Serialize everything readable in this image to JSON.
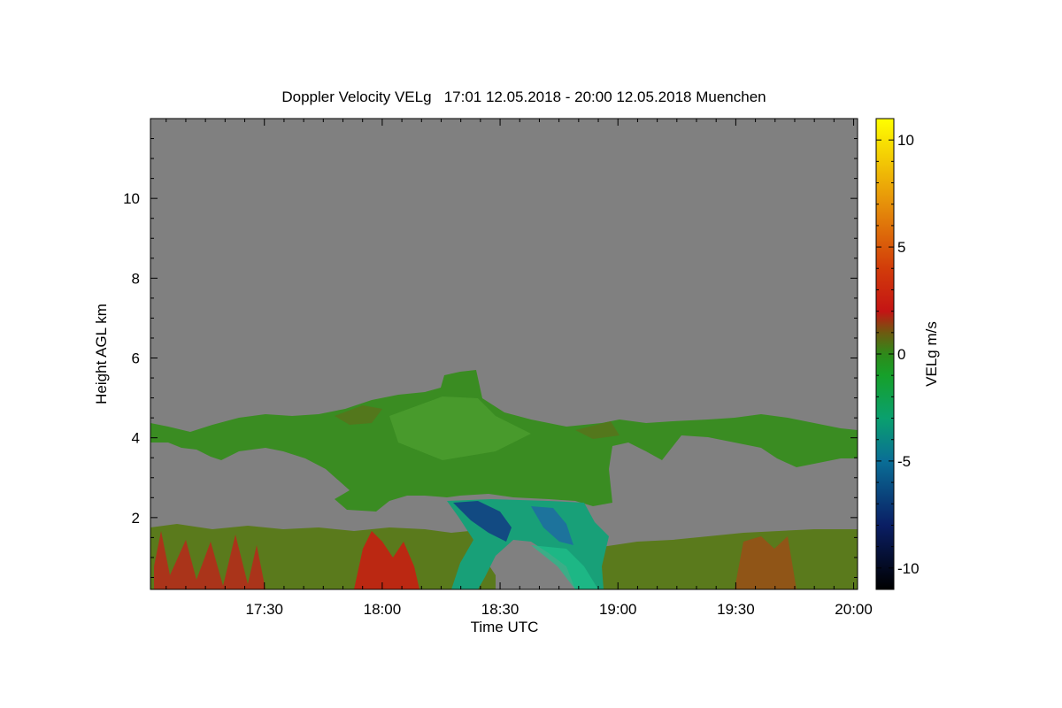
{
  "chart_data": {
    "type": "heatmap",
    "title": "Doppler Velocity VELg   17:01 12.05.2018 - 20:00 12.05.2018 Muenchen",
    "xlabel": "Time UTC",
    "ylabel": "Height AGL km",
    "colorbar_label": "VELg m/s",
    "x_tick_labels": [
      "17:30",
      "18:00",
      "18:30",
      "19:00",
      "19:30",
      "20:00"
    ],
    "x_ticks_minutes_utc": [
      1050,
      1080,
      1110,
      1140,
      1170,
      1200
    ],
    "xlim_minutes_utc": [
      1021,
      1201
    ],
    "y_ticks": [
      2,
      4,
      6,
      8,
      10
    ],
    "ylim": [
      0.2,
      12.0
    ],
    "colorbar_ticks": [
      10,
      5,
      0,
      -5,
      -10
    ],
    "colorbar_range": [
      -11,
      11
    ],
    "colorscale": [
      {
        "value": -11,
        "color": "#000000"
      },
      {
        "value": -8,
        "color": "#0a1e64"
      },
      {
        "value": -5,
        "color": "#0a6e96"
      },
      {
        "value": -3,
        "color": "#0aa06e"
      },
      {
        "value": -1,
        "color": "#16a02a"
      },
      {
        "value": 0,
        "color": "#2e8a1a"
      },
      {
        "value": 1,
        "color": "#6e5a10"
      },
      {
        "value": 2,
        "color": "#c41414"
      },
      {
        "value": 4,
        "color": "#d23c0a"
      },
      {
        "value": 7,
        "color": "#e6900a"
      },
      {
        "value": 11,
        "color": "#ffff00"
      }
    ],
    "no_signal_color": "#808080",
    "features": [
      {
        "name": "mid-level cloud layer",
        "time_range": [
          "17:01",
          "20:00"
        ],
        "height_km": [
          2.3,
          5.6
        ],
        "velocity_ms": [
          -2,
          1
        ]
      },
      {
        "name": "boundary layer",
        "time_range": [
          "17:01",
          "20:00"
        ],
        "height_km": [
          0.2,
          1.9
        ],
        "velocity_ms": [
          -1,
          3
        ]
      },
      {
        "name": "precipitation fall streak",
        "time_range": [
          "18:20",
          "18:55"
        ],
        "height_km": [
          0.2,
          2.5
        ],
        "velocity_ms": [
          -8,
          -2
        ]
      }
    ]
  }
}
